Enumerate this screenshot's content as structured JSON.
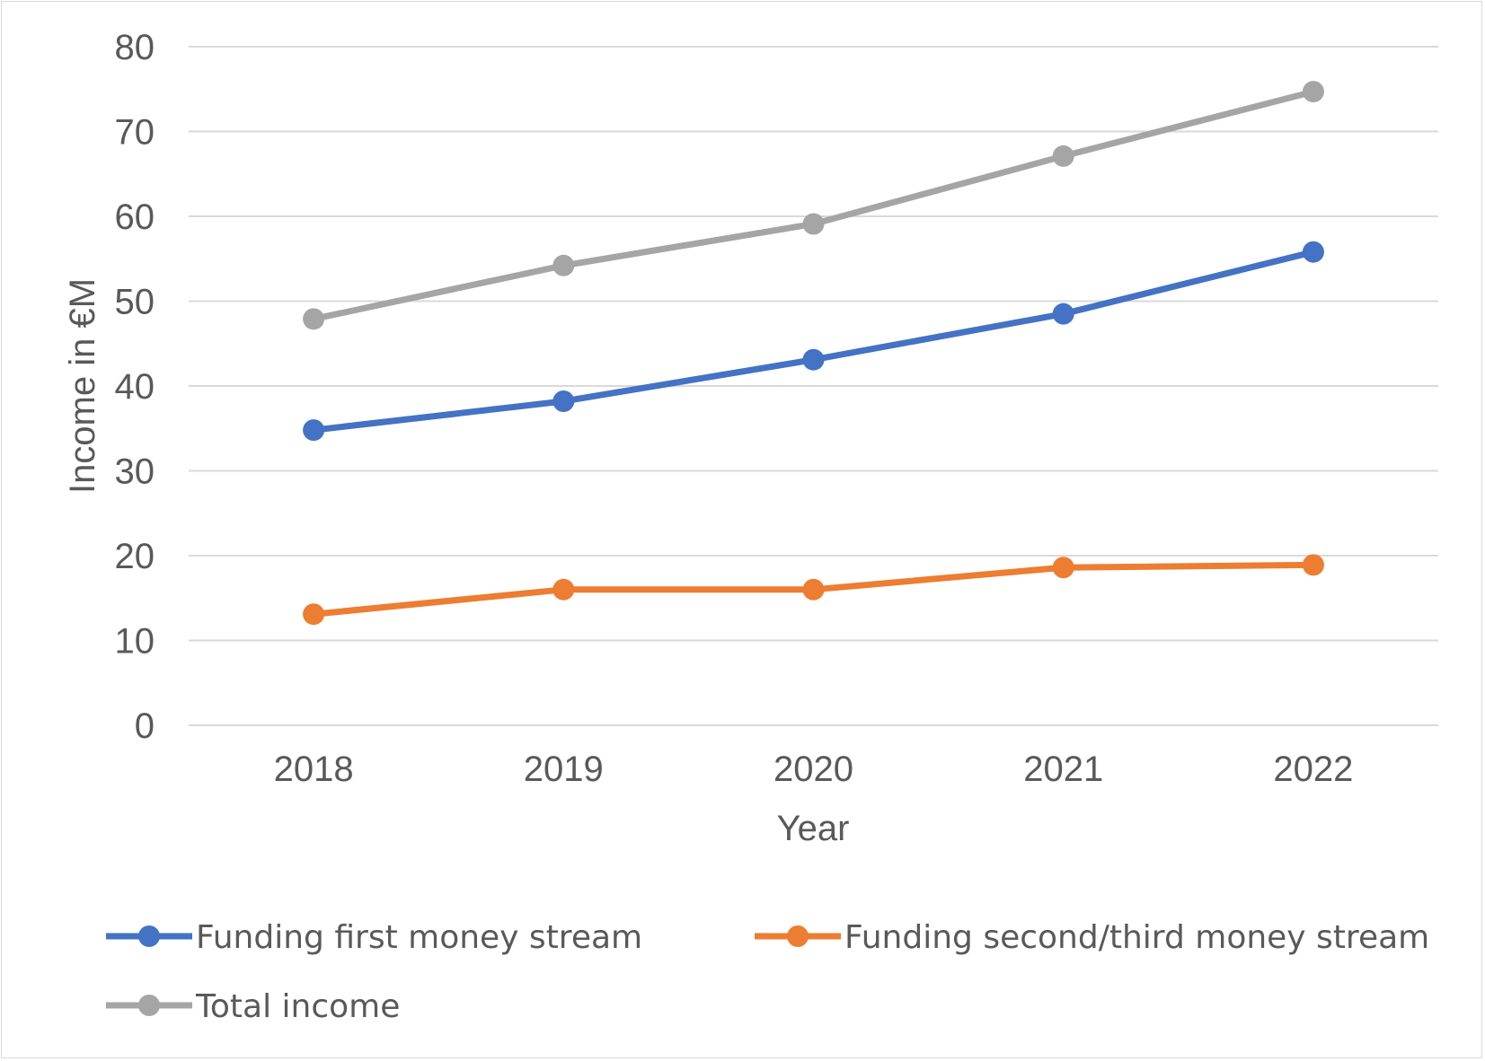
{
  "chart_data": {
    "type": "line",
    "xlabel": "Year",
    "ylabel": "Income in €M",
    "categories": [
      "2018",
      "2019",
      "2020",
      "2021",
      "2022"
    ],
    "ylim": [
      0,
      80
    ],
    "yticks": [
      0,
      10,
      20,
      30,
      40,
      50,
      60,
      70,
      80
    ],
    "grid": true,
    "legend_position": "bottom",
    "series": [
      {
        "name": "Funding first money stream",
        "color": "#4472c4",
        "values": [
          34.8,
          38.2,
          43.1,
          48.5,
          55.8
        ]
      },
      {
        "name": "Funding second/third money stream",
        "color": "#ed7d31",
        "values": [
          13.1,
          16.0,
          16.0,
          18.6,
          18.9
        ]
      },
      {
        "name": "Total income",
        "color": "#a5a5a5",
        "values": [
          47.9,
          54.2,
          59.1,
          67.1,
          74.7
        ]
      }
    ]
  }
}
